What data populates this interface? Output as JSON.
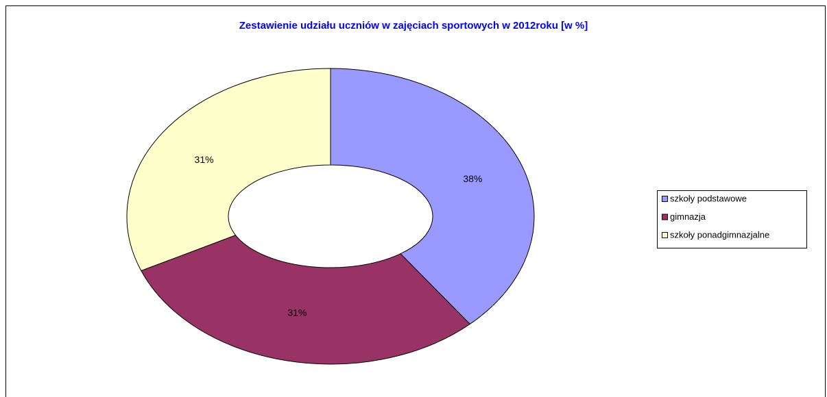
{
  "chart_data": {
    "type": "donut",
    "title": "Zestawienie udziału uczniów w zajęciach sportowych w 2012roku [w %]",
    "categories": [
      "szkoły podstawowe",
      "gimnazja",
      "szkoły ponadgimnazjalne"
    ],
    "values": [
      38,
      31,
      31
    ],
    "value_labels": [
      "38%",
      "31%",
      "31%"
    ],
    "colors": [
      "#9999ff",
      "#993366",
      "#ffffcc"
    ],
    "legend": "right"
  }
}
